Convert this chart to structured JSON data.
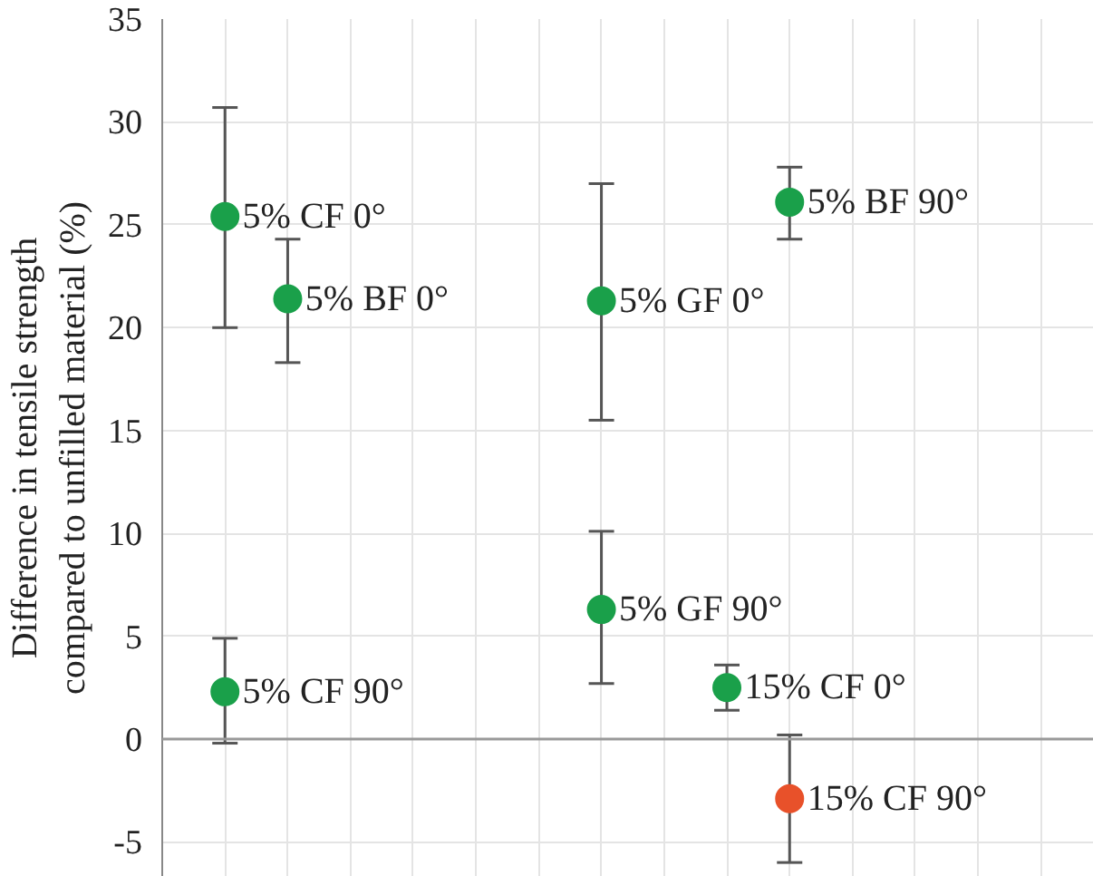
{
  "chart_data": {
    "type": "scatter",
    "ylabel": "Difference in tensile strength\ncompared to unfilled material (%)",
    "categories": [
      null,
      null,
      null,
      null,
      null,
      null,
      null,
      null,
      null,
      null,
      null,
      null,
      null,
      null
    ],
    "series": [
      {
        "color": "#1aa04a",
        "values": [
          25.4,
          21.4,
          null,
          null,
          null,
          null,
          21.3,
          null,
          2.5,
          26.1,
          null,
          null,
          null,
          null
        ],
        "errors": [
          [
            20.0,
            30.7
          ],
          [
            18.3,
            24.3
          ],
          null,
          null,
          null,
          null,
          [
            15.5,
            27.0
          ],
          null,
          [
            1.4,
            3.6
          ],
          [
            24.3,
            27.8
          ],
          null,
          null,
          null,
          null
        ],
        "value_labels": [
          "5% CF 0°",
          "5% BF 0°",
          null,
          null,
          null,
          null,
          "5% GF 0°",
          null,
          "15% CF 0°",
          "5% BF 90°",
          null,
          null,
          null,
          null
        ]
      },
      {
        "colors": [
          "#1aa04a",
          null,
          null,
          null,
          null,
          null,
          "#1aa04a",
          null,
          null,
          "#e8512a",
          null,
          null,
          null,
          null
        ],
        "values": [
          2.3,
          null,
          null,
          null,
          null,
          null,
          6.3,
          null,
          null,
          -2.9,
          null,
          null,
          null,
          null
        ],
        "errors": [
          [
            -0.2,
            4.9
          ],
          null,
          null,
          null,
          null,
          null,
          [
            2.7,
            10.1
          ],
          null,
          null,
          [
            -6.0,
            0.2
          ],
          null,
          null,
          null,
          null
        ],
        "value_labels": [
          "5% CF 90°",
          null,
          null,
          null,
          null,
          null,
          "5% GF 90°",
          null,
          null,
          "15% CF 90°",
          null,
          null,
          null,
          null
        ]
      }
    ],
    "ylim": [
      -6.7,
      35
    ],
    "yticks": [
      -5,
      0,
      5,
      10,
      15,
      20,
      25,
      30,
      35
    ],
    "grid": true,
    "marker": "circle",
    "tick_labels": "y"
  }
}
